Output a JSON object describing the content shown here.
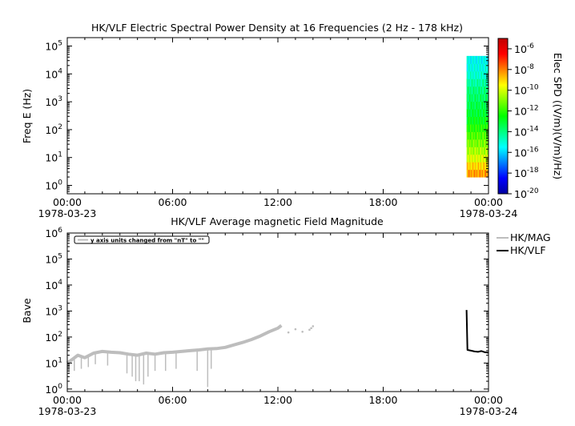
{
  "chart_data": [
    {
      "type": "heatmap",
      "title": "HK/VLF  Electric Spectral Power Density at 16 Frequencies (2 Hz - 178 kHz)",
      "ylabel": "Freq E (Hz)",
      "x_ticks": [
        "00:00",
        "06:00",
        "12:00",
        "18:00",
        "00:00"
      ],
      "x_dates": [
        "1978-03-23",
        "1978-03-24"
      ],
      "xlim": [
        "1978-03-23 00:00",
        "1978-03-24 00:00"
      ],
      "y_scale": "log",
      "ylim": [
        0.5,
        200000
      ],
      "y_tick_exponents": [
        0,
        1,
        2,
        3,
        4,
        5
      ],
      "y_tick_base": "10",
      "data_coverage": {
        "time_start": "1978-03-23 22:00",
        "time_end": "1978-03-24 00:00",
        "freq_min_hz": 2,
        "freq_max_hz": 44000
      },
      "colorbar": {
        "label": "Elec SPD ((V/m)(V/m)/Hz)",
        "scale": "log",
        "range": [
          1e-20,
          1e-05
        ],
        "tick_base": "10",
        "tick_exponents": [
          "-20",
          "-18",
          "-16",
          "-14",
          "-12",
          "-10",
          "-8",
          "-6"
        ],
        "colors": [
          "#0000a0",
          "#0000ff",
          "#0080ff",
          "#00ffff",
          "#00ff80",
          "#00ff00",
          "#80ff00",
          "#ffff00",
          "#ff8000",
          "#ff0000",
          "#c00000"
        ]
      },
      "approx_band_levels_exp": [
        {
          "freq_hz": 2,
          "exp": -8
        },
        {
          "freq_hz": 5,
          "exp": -9
        },
        {
          "freq_hz": 10,
          "exp": -10
        },
        {
          "freq_hz": 30,
          "exp": -11
        },
        {
          "freq_hz": 100,
          "exp": -12
        },
        {
          "freq_hz": 300,
          "exp": -13
        },
        {
          "freq_hz": 1000,
          "exp": -13.5
        },
        {
          "freq_hz": 3000,
          "exp": -14
        },
        {
          "freq_hz": 10000,
          "exp": -15
        },
        {
          "freq_hz": 44000,
          "exp": -15.5
        }
      ]
    },
    {
      "type": "line",
      "title": "HK/VLF  Average magnetic Field Magnitude",
      "ylabel": "Bave",
      "annotation": "y axis units changed from \"nT\" to \"\"",
      "x_ticks": [
        "00:00",
        "06:00",
        "12:00",
        "18:00",
        "00:00"
      ],
      "x_dates": [
        "1978-03-23",
        "1978-03-24"
      ],
      "xlim": [
        "1978-03-23 00:00",
        "1978-03-24 00:00"
      ],
      "y_scale": "log",
      "ylim": [
        0.8,
        1000000
      ],
      "y_tick_exponents": [
        0,
        1,
        2,
        3,
        4,
        5,
        6
      ],
      "y_tick_base": "10",
      "legend_position": "right",
      "series": [
        {
          "name": "HK/MAG",
          "color": "#bdbdbd",
          "x_hours": [
            0.0,
            0.3,
            0.6,
            1.0,
            1.5,
            2.0,
            2.5,
            3.0,
            3.5,
            4.0,
            4.5,
            5.0,
            5.5,
            6.0,
            6.5,
            7.0,
            7.5,
            8.0,
            8.5,
            9.0,
            9.5,
            10.0,
            10.5,
            11.0,
            11.5,
            12.0,
            12.2
          ],
          "y": [
            10,
            14,
            20,
            16,
            24,
            28,
            26,
            25,
            22,
            20,
            24,
            22,
            25,
            26,
            28,
            30,
            32,
            35,
            36,
            40,
            50,
            62,
            80,
            110,
            160,
            220,
            280
          ],
          "dips_hours": [
            0.1,
            0.4,
            0.8,
            1.2,
            1.6,
            2.3,
            3.4,
            3.7,
            3.9,
            4.1,
            4.35,
            4.6,
            5.0,
            5.6,
            6.2,
            7.4,
            8.0,
            8.2
          ],
          "dips_y": [
            4,
            5,
            6,
            7,
            9,
            8,
            4,
            3,
            2,
            2,
            1.5,
            3,
            5,
            5,
            6,
            5,
            1.2,
            6
          ],
          "isolated_points": [
            [
              11.6,
              170
            ],
            [
              12.6,
              150
            ],
            [
              13.0,
              200
            ],
            [
              13.4,
              160
            ],
            [
              13.8,
              190
            ],
            [
              13.9,
              220
            ],
            [
              14.0,
              260
            ]
          ]
        },
        {
          "name": "HK/VLF",
          "color": "#000000",
          "x_hours": [
            22.75,
            22.8,
            23.0,
            23.2,
            23.4,
            23.6,
            23.8,
            24.0
          ],
          "y": [
            1100,
            32,
            30,
            28,
            27,
            29,
            26,
            25
          ]
        }
      ]
    }
  ]
}
